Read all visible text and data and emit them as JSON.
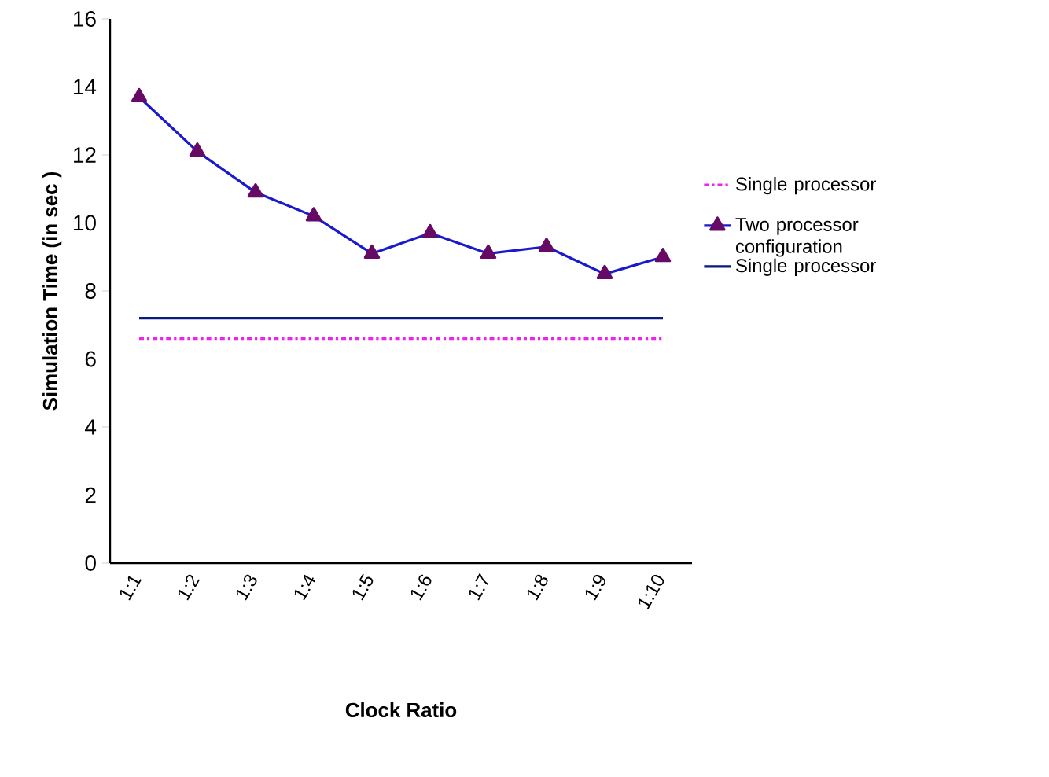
{
  "chart_data": {
    "type": "line",
    "xlabel": "Clock Ratio",
    "ylabel": "Simulation Time (in sec )",
    "categories": [
      "1:1",
      "1:2",
      "1:3",
      "1:4",
      "1:5",
      "1:6",
      "1:7",
      "1:8",
      "1:9",
      "1:10"
    ],
    "series": [
      {
        "name": "Single processor",
        "color": "#ee22ee",
        "line_style": "dashed",
        "marker": "none",
        "values": [
          6.6,
          6.6,
          6.6,
          6.6,
          6.6,
          6.6,
          6.6,
          6.6,
          6.6,
          6.6
        ]
      },
      {
        "name": "Two processor configuration",
        "color": "#1a1acc",
        "colors": [
          "#660a66",
          "#660a66",
          "#660a66",
          "#660a66",
          "#660a66",
          "#660a66",
          "#660a66",
          "#660a66",
          "#660a66",
          "#660a66"
        ],
        "line_style": "solid",
        "marker": "triangle",
        "values": [
          13.7,
          12.1,
          10.9,
          10.2,
          9.1,
          9.7,
          9.1,
          9.3,
          8.5,
          9.0
        ]
      },
      {
        "name": "Single processor",
        "color": "#0a1a80",
        "line_style": "solid",
        "marker": "none",
        "values": [
          7.2,
          7.2,
          7.2,
          7.2,
          7.2,
          7.2,
          7.2,
          7.2,
          7.2,
          7.2
        ]
      }
    ],
    "ylim": [
      0,
      16
    ],
    "yticks": [
      0,
      2,
      4,
      6,
      8,
      10,
      12,
      14,
      16
    ],
    "grid": false,
    "legend": "right"
  }
}
